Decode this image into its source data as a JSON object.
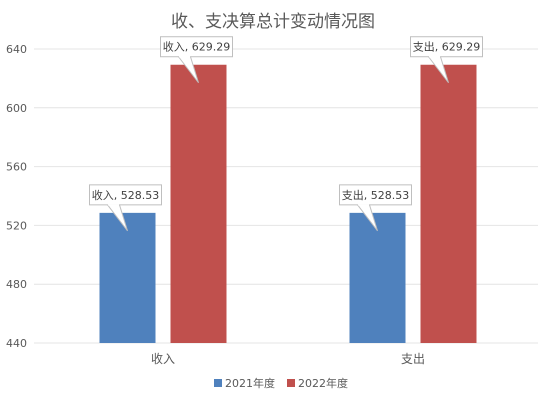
{
  "chart_data": {
    "type": "bar",
    "title": "收、支决算总计变动情况图",
    "categories": [
      "收入",
      "支出"
    ],
    "series": [
      {
        "name": "2021年度",
        "color": "#4f81bd",
        "values": [
          528.53,
          528.53
        ]
      },
      {
        "name": "2022年度",
        "color": "#c0504d",
        "values": [
          629.29,
          629.29
        ]
      }
    ],
    "data_labels": [
      [
        "收入, 528.53",
        "支出, 528.53"
      ],
      [
        "收入, 629.29",
        "支出, 629.29"
      ]
    ],
    "ylim": [
      440,
      640
    ],
    "yticks": [
      440,
      480,
      520,
      560,
      600,
      640
    ],
    "grid": true,
    "legend_position": "bottom"
  }
}
